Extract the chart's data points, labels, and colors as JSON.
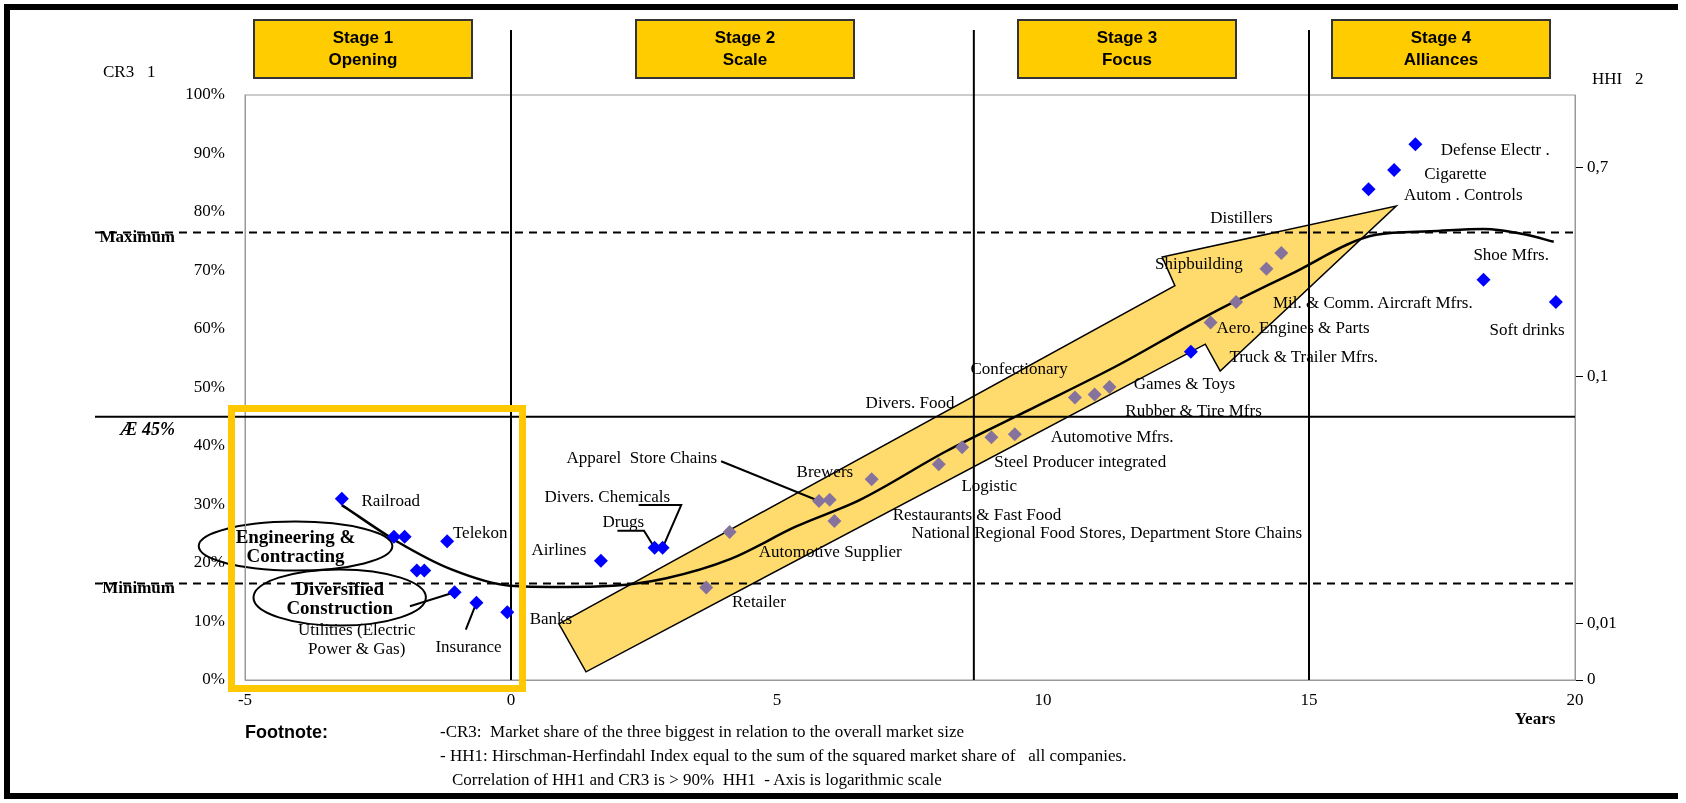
{
  "chart_data": {
    "type": "scatter",
    "xlabel": "Years",
    "ylabel": "CR3   1",
    "y2label": "HHI   2",
    "xlim": [
      -5,
      20
    ],
    "xticks": [
      -5,
      0,
      5,
      10,
      15,
      20
    ],
    "ylim": [
      0,
      100
    ],
    "yticks": [
      {
        "value": 0,
        "label": "0%"
      },
      {
        "value": 10,
        "label": "10%"
      },
      {
        "value": 20,
        "label": "20%"
      },
      {
        "value": 30,
        "label": "30%"
      },
      {
        "value": 40,
        "label": "40%"
      },
      {
        "value": 50,
        "label": "50%"
      },
      {
        "value": 60,
        "label": "60%"
      },
      {
        "value": 70,
        "label": "70%"
      },
      {
        "value": 80,
        "label": "80%"
      },
      {
        "value": 90,
        "label": "90%"
      },
      {
        "value": 100,
        "label": "100%"
      }
    ],
    "log": "y2",
    "y2lim": [
      0.0059,
      1.38
    ],
    "y2ticks": [
      {
        "value": 0.0059,
        "label": "0"
      },
      {
        "value": 0.01,
        "label": "0,01"
      },
      {
        "value": 0.1,
        "label": "0,1"
      },
      {
        "value": 0.7,
        "label": "0,7"
      }
    ],
    "grid": false,
    "legend": false,
    "marker": "diamond",
    "series": [
      {
        "type": "scatter",
        "color": "#0000ff",
        "x": [
          -3.18,
          -2.2,
          -2.0,
          -1.77,
          -1.63,
          -1.2,
          -1.06,
          -0.65,
          -0.07,
          1.69,
          2.7,
          2.85,
          12.78,
          16.12,
          16.6,
          17.0,
          18.28,
          19.64
        ],
        "values": [
          31.0,
          24.5,
          24.5,
          18.7,
          18.7,
          23.7,
          15.0,
          13.2,
          11.6,
          20.4,
          22.6,
          22.6,
          56.1,
          83.9,
          87.2,
          91.6,
          68.4,
          64.6
        ]
      },
      {
        "type": "scatter",
        "color": "#85739e",
        "x": [
          3.67,
          4.11,
          5.79,
          5.99,
          6.08,
          6.78,
          8.04,
          8.48,
          9.03,
          9.47,
          10.6,
          10.97,
          11.25,
          13.15,
          13.63,
          14.2,
          14.48
        ],
        "values": [
          15.8,
          25.3,
          30.6,
          30.8,
          27.2,
          34.3,
          36.9,
          39.8,
          41.5,
          42.0,
          48.3,
          48.8,
          50.1,
          61.1,
          64.6,
          70.3,
          73.0
        ]
      },
      {
        "type": "line",
        "color": "#000000",
        "marker": "none",
        "x": [
          -3.18,
          -2.11,
          -1.12,
          -0.01,
          0.9,
          1.91,
          2.92,
          4.13,
          5.35,
          6.56,
          8.18,
          9.79,
          11.41,
          13.03,
          14.64,
          16.26,
          17.27,
          18.28,
          19.09,
          19.6
        ],
        "values": [
          29.9,
          23.5,
          18.9,
          16.1,
          15.9,
          16.1,
          17.4,
          20.7,
          26.2,
          30.8,
          39.1,
          46.4,
          53.8,
          62.0,
          69.3,
          76.1,
          76.7,
          77.1,
          76.1,
          74.9
        ]
      }
    ],
    "ref_lines": [
      {
        "axis": "y",
        "value": 76.5,
        "label": "Maximum",
        "line_style": "dashed",
        "color": "#000000"
      },
      {
        "axis": "y",
        "value": 16.5,
        "label": "Minimum",
        "line_style": "dashed",
        "color": "#000000"
      },
      {
        "axis": "y",
        "value": 45,
        "label": "Æ 45%",
        "line_style": "solid",
        "color": "#000000"
      },
      {
        "axis": "x",
        "value": 0,
        "line_style": "solid",
        "color": "#000000"
      },
      {
        "axis": "x",
        "value": 8.7,
        "line_style": "solid",
        "color": "#000000"
      },
      {
        "axis": "x",
        "value": 15,
        "line_style": "solid",
        "color": "#000000"
      }
    ],
    "annotations": [
      "Stage 1\nOpening",
      "Stage 2\nScale",
      "Stage 3\nFocus",
      "Stage 4\nAlliances",
      "Footnote:",
      "-CR3:  Market share of the three biggest in relation to the overall market size",
      "- HH1: Hirschman-Herfindahl Index equal to the sum of the squared market share of   all companies.",
      "Correlation of HH1 and CR3 is > 90%  HH1  - Axis is logarithmic scale",
      "Railroad",
      "Engineering &\nContracting",
      "Telekon",
      {
        "text": "Diversified\nConstruction",
        "x": -1.06,
        "y": 15.0
      },
      "Utilities (Electric\nPower & Gas)",
      {
        "text": "Insurance",
        "x": -0.65,
        "y": 13.2
      },
      "Banks",
      "Airlines",
      {
        "text": "Drugs",
        "x": 2.7,
        "y": 22.6
      },
      {
        "text": "Divers. Chemicals",
        "x": 2.85,
        "y": 22.6
      },
      {
        "text": "Apparel  Store Chains",
        "x": 5.79,
        "y": 30.6
      },
      "Brewers",
      "Automotive Supplier",
      "Retailer",
      "Restaurants & Fast Food",
      "National Regional Food Stores, Department Store Chains",
      "Logistic",
      "Steel Producer integrated",
      "Automotive Mfrs.",
      "Divers. Food",
      "Rubber & Tire Mfrs",
      "Games & Toys",
      "Confectionary",
      "Truck & Trailer Mfrs.",
      "Aero. Engines & Parts",
      "Mil. & Comm. Aircraft Mfrs.",
      "Shipbuilding",
      "Distillers",
      "Autom . Controls",
      "Cigarette",
      "Defense Electr .",
      "Shoe Mfrs.",
      "Soft drinks"
    ]
  }
}
